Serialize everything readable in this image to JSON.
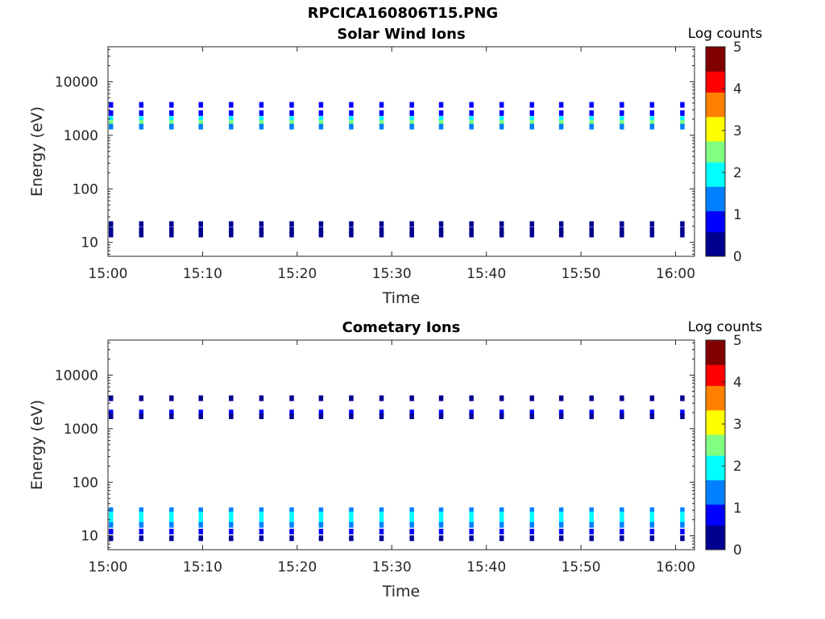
{
  "figure": {
    "title": "RPCICA160806T15.PNG"
  },
  "colors": {
    "axis": "#262626",
    "colormap": [
      "#00008f",
      "#0000ff",
      "#0080ff",
      "#00ffff",
      "#80ff80",
      "#ffff00",
      "#ff8000",
      "#ff0000",
      "#800000"
    ]
  },
  "chart_data": [
    {
      "type": "heatmap",
      "title": "Solar Wind Ions",
      "xlabel": "Time",
      "ylabel": "Energy (eV)",
      "yscale": "log",
      "xlim": [
        "15:00",
        "16:02"
      ],
      "ylim": [
        5.5,
        45000
      ],
      "xticks": [
        "15:00",
        "15:10",
        "15:20",
        "15:30",
        "15:40",
        "15:50",
        "16:00"
      ],
      "yticks": [
        "10",
        "100",
        "1000",
        "10000"
      ],
      "colorbar": {
        "label": "Log counts",
        "range": [
          0,
          5
        ],
        "ticks": [
          "0",
          "1",
          "2",
          "3",
          "4",
          "5"
        ]
      },
      "sweep_minutes": [
        0.0,
        3.2,
        6.4,
        9.5,
        12.7,
        15.9,
        19.1,
        22.2,
        25.4,
        28.6,
        31.8,
        34.9,
        38.1,
        41.3,
        44.5,
        47.6,
        50.8,
        54.0,
        57.2,
        60.4
      ],
      "bands": [
        {
          "energy": 3700,
          "log_counts": 0.6
        },
        {
          "energy": 2600,
          "log_counts": 0.8
        },
        {
          "energy": 2000,
          "log_counts": 1.8
        },
        {
          "energy": 1700,
          "log_counts": 2.4
        },
        {
          "energy": 1450,
          "log_counts": 1.2
        },
        {
          "energy": 22,
          "log_counts": 0.3
        },
        {
          "energy": 17,
          "log_counts": 0.2
        },
        {
          "energy": 14,
          "log_counts": 0.2
        }
      ]
    },
    {
      "type": "heatmap",
      "title": "Cometary Ions",
      "xlabel": "Time",
      "ylabel": "Energy (eV)",
      "yscale": "log",
      "xlim": [
        "15:00",
        "16:02"
      ],
      "ylim": [
        5.5,
        45000
      ],
      "xticks": [
        "15:00",
        "15:10",
        "15:20",
        "15:30",
        "15:40",
        "15:50",
        "16:00"
      ],
      "yticks": [
        "10",
        "100",
        "1000",
        "10000"
      ],
      "colorbar": {
        "label": "Log counts",
        "range": [
          0,
          5
        ],
        "ticks": [
          "0",
          "1",
          "2",
          "3",
          "4",
          "5"
        ]
      },
      "sweep_minutes": [
        0.0,
        3.2,
        6.4,
        9.5,
        12.7,
        15.9,
        19.1,
        22.2,
        25.4,
        28.6,
        31.8,
        34.9,
        38.1,
        41.3,
        44.5,
        47.6,
        50.8,
        54.0,
        57.2,
        60.4
      ],
      "bands": [
        {
          "energy": 3700,
          "log_counts": 0.5
        },
        {
          "energy": 2000,
          "log_counts": 0.6
        },
        {
          "energy": 1700,
          "log_counts": 0.5
        },
        {
          "energy": 30,
          "log_counts": 1.3
        },
        {
          "energy": 25,
          "log_counts": 1.8
        },
        {
          "energy": 20,
          "log_counts": 1.9
        },
        {
          "energy": 16,
          "log_counts": 1.4
        },
        {
          "energy": 12,
          "log_counts": 0.6
        },
        {
          "energy": 9,
          "log_counts": 0.2
        }
      ]
    }
  ]
}
